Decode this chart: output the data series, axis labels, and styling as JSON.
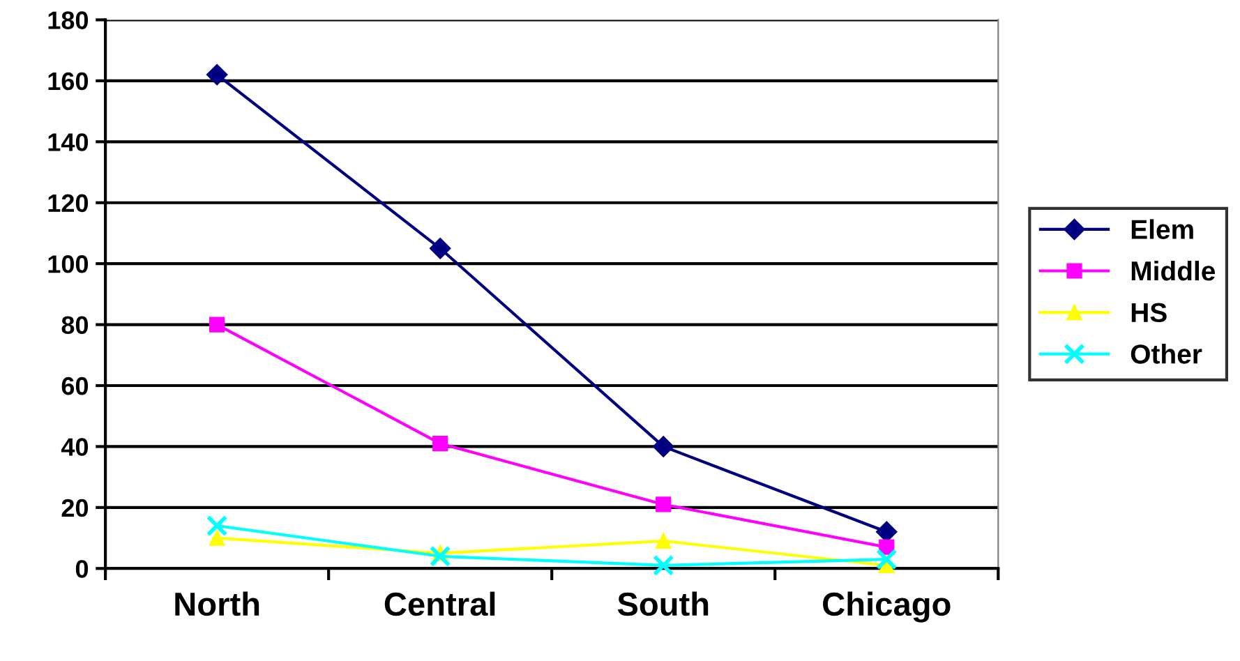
{
  "chart_data": {
    "type": "line",
    "categories": [
      "North",
      "Central",
      "South",
      "Chicago"
    ],
    "series": [
      {
        "name": "Elem",
        "color": "#000080",
        "marker": "diamond",
        "values": [
          162,
          105,
          40,
          12
        ]
      },
      {
        "name": "Middle",
        "color": "#ff00ff",
        "marker": "square",
        "values": [
          80,
          41,
          21,
          7
        ]
      },
      {
        "name": "HS",
        "color": "#ffff00",
        "marker": "triangle",
        "values": [
          10,
          5,
          9,
          1
        ]
      },
      {
        "name": "Other",
        "color": "#00ffff",
        "marker": "cross",
        "values": [
          14,
          4,
          1,
          3
        ]
      }
    ],
    "ylim": [
      0,
      180
    ],
    "yticks": [
      0,
      20,
      40,
      60,
      80,
      100,
      120,
      140,
      160,
      180
    ],
    "grid": "y",
    "legend": "right"
  }
}
